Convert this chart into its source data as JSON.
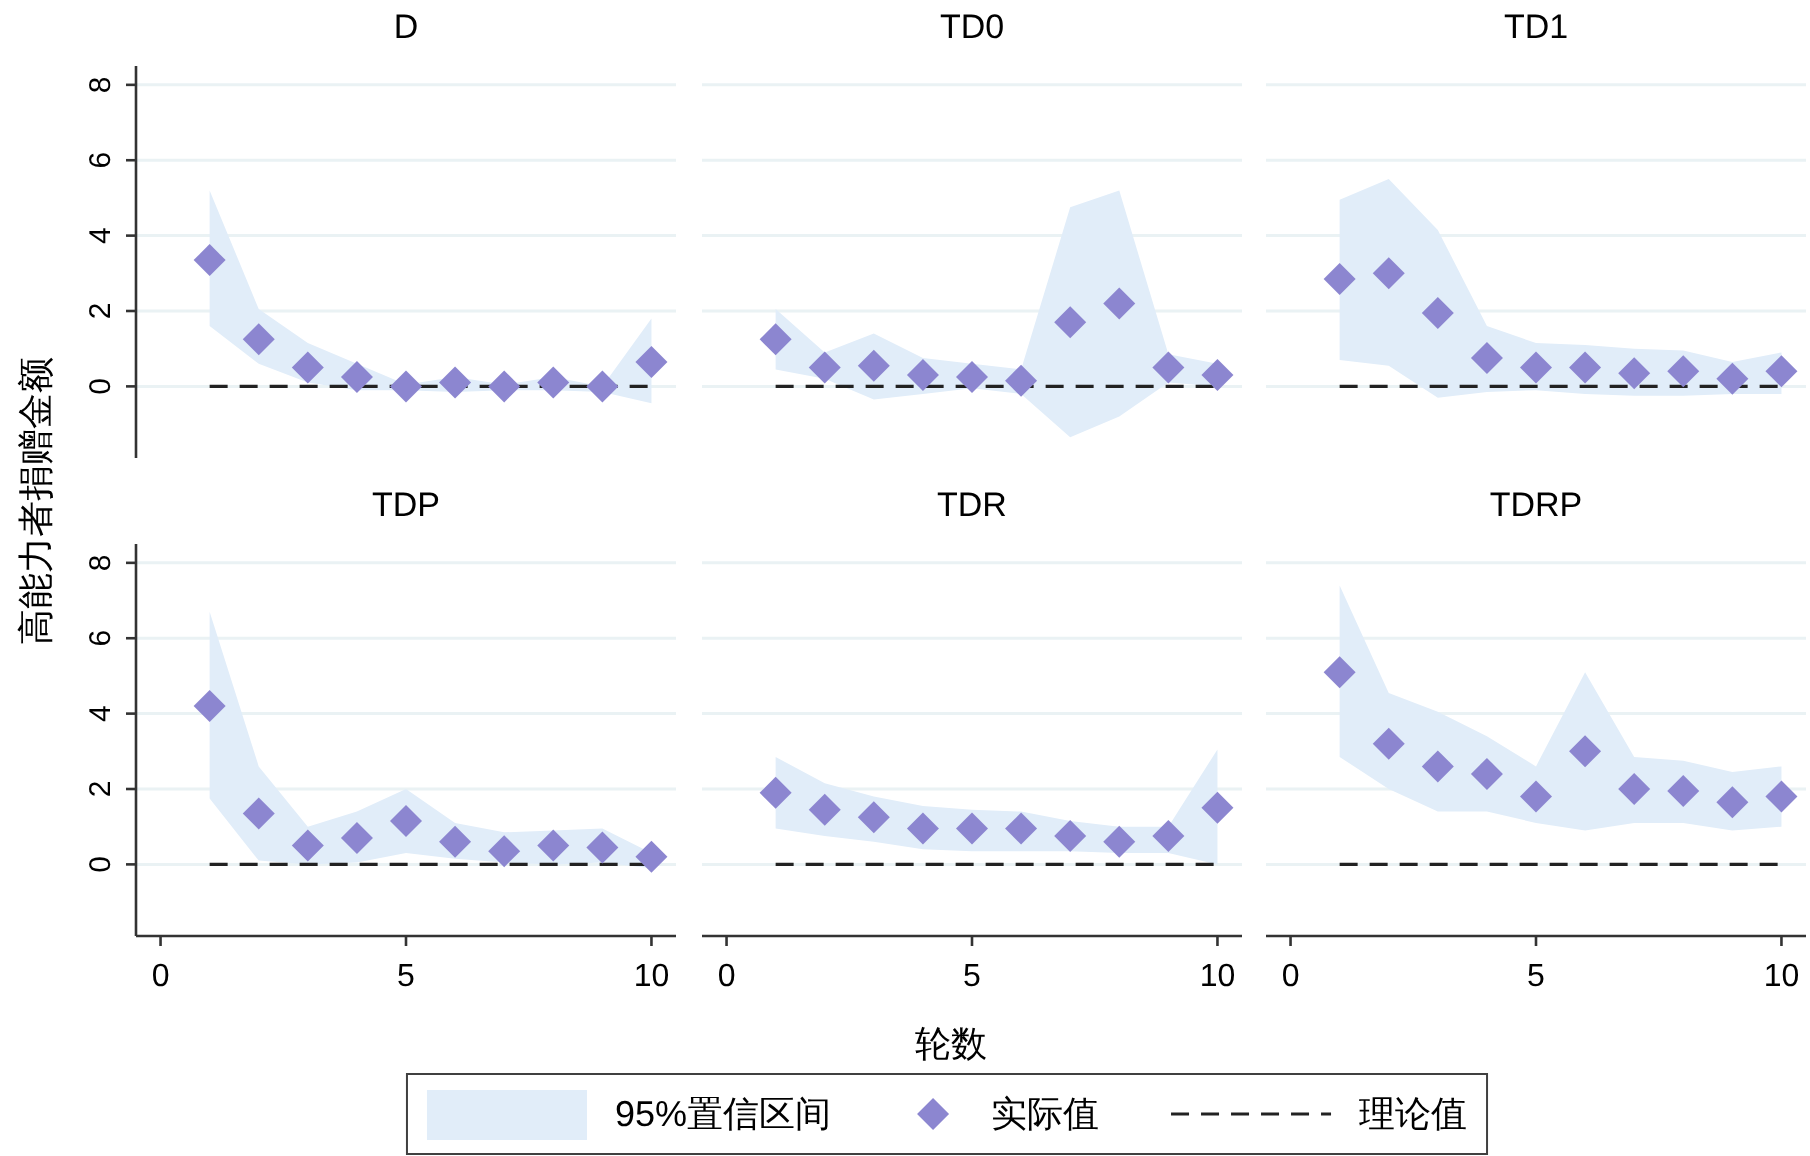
{
  "chart_data": [
    {
      "type": "scatter",
      "title": "D",
      "ylabel": "高能力者捐赠金额",
      "x": [
        1,
        2,
        3,
        4,
        5,
        6,
        7,
        8,
        9,
        10
      ],
      "xlim": [
        -0.5,
        10.5
      ],
      "ylim": [
        -1.9,
        8.5
      ],
      "yticks": [
        0,
        2,
        4,
        6,
        8
      ],
      "grid": "y",
      "tick_labels": "y",
      "series": [
        {
          "color": "#8c86d0",
          "marker": "diamond",
          "values": [
            3.35,
            1.25,
            0.5,
            0.25,
            0,
            0.1,
            0,
            0.1,
            0,
            0.65
          ],
          "lower": [
            1.6,
            0.6,
            0.1,
            -0.1,
            -0.1,
            -0.15,
            -0.1,
            -0.1,
            -0.15,
            -0.45
          ],
          "upper": [
            5.2,
            2.05,
            1.15,
            0.6,
            0.05,
            0.25,
            0.05,
            0.25,
            0,
            1.8
          ]
        },
        {
          "type": "line",
          "color": "#222222",
          "line_style": "dashed",
          "values": [
            0,
            0,
            0,
            0,
            0,
            0,
            0,
            0,
            0,
            0
          ]
        }
      ]
    },
    {
      "type": "scatter",
      "title": "TD0",
      "x": [
        1,
        2,
        3,
        4,
        5,
        6,
        7,
        8,
        9,
        10
      ],
      "xlim": [
        -0.5,
        10.5
      ],
      "yticks": [
        0,
        2,
        4,
        6,
        8
      ],
      "grid": "y",
      "tick_labels": false,
      "series": [
        {
          "color": "#8c86d0",
          "marker": "diamond",
          "values": [
            1.25,
            0.5,
            0.55,
            0.3,
            0.25,
            0.15,
            1.7,
            2.2,
            0.5,
            0.3
          ],
          "lower": [
            0.45,
            0.2,
            -0.35,
            -0.2,
            -0.05,
            -0.2,
            -1.35,
            -0.8,
            0.1,
            0
          ],
          "upper": [
            2.05,
            0.9,
            1.4,
            0.75,
            0.6,
            0.45,
            4.75,
            5.2,
            0.85,
            0.6
          ]
        },
        {
          "type": "line",
          "color": "#222222",
          "line_style": "dashed",
          "values": [
            0,
            0,
            0,
            0,
            0,
            0,
            0,
            0,
            0,
            0
          ]
        }
      ]
    },
    {
      "type": "scatter",
      "title": "TD1",
      "x": [
        1,
        2,
        3,
        4,
        5,
        6,
        7,
        8,
        9,
        10
      ],
      "xlim": [
        -0.5,
        10.5
      ],
      "yticks": [
        0,
        2,
        4,
        6,
        8
      ],
      "grid": "y",
      "tick_labels": false,
      "series": [
        {
          "color": "#8c86d0",
          "marker": "diamond",
          "values": [
            2.85,
            3.0,
            1.95,
            0.75,
            0.5,
            0.5,
            0.35,
            0.4,
            0.2,
            0.4
          ],
          "lower": [
            0.7,
            0.55,
            -0.3,
            -0.15,
            -0.1,
            -0.2,
            -0.25,
            -0.25,
            -0.2,
            -0.2
          ],
          "upper": [
            4.95,
            5.5,
            4.15,
            1.6,
            1.15,
            1.1,
            1.0,
            0.95,
            0.65,
            0.9
          ]
        },
        {
          "type": "line",
          "color": "#222222",
          "line_style": "dashed",
          "values": [
            0,
            0,
            0,
            0,
            0,
            0,
            0,
            0,
            0,
            0
          ]
        }
      ]
    },
    {
      "type": "scatter",
      "title": "TDP",
      "x": [
        1,
        2,
        3,
        4,
        5,
        6,
        7,
        8,
        9,
        10
      ],
      "xlim": [
        -0.5,
        10.5
      ],
      "xticks": [
        0,
        5,
        10
      ],
      "ylim": [
        -1.9,
        8.5
      ],
      "yticks": [
        0,
        2,
        4,
        6,
        8
      ],
      "grid": "y",
      "series": [
        {
          "color": "#8c86d0",
          "marker": "diamond",
          "values": [
            4.2,
            1.35,
            0.5,
            0.7,
            1.15,
            0.6,
            0.35,
            0.5,
            0.45,
            0.2
          ],
          "lower": [
            1.75,
            0.1,
            0,
            0.05,
            0.3,
            0.15,
            0.05,
            0,
            0.05,
            -0.1
          ],
          "upper": [
            6.7,
            2.6,
            1.0,
            1.4,
            2.0,
            1.1,
            0.85,
            0.9,
            0.95,
            0.3
          ]
        },
        {
          "type": "line",
          "color": "#222222",
          "line_style": "dashed",
          "values": [
            0,
            0,
            0,
            0,
            0,
            0,
            0,
            0,
            0,
            0
          ]
        }
      ]
    },
    {
      "type": "scatter",
      "title": "TDR",
      "xlabel": "轮数",
      "legend": "bottom",
      "annotations": [
        "95%置信区间"
      ],
      "x": [
        1,
        2,
        3,
        4,
        5,
        6,
        7,
        8,
        9,
        10
      ],
      "xlim": [
        -0.5,
        10.5
      ],
      "xticks": [
        0,
        5,
        10
      ],
      "yticks": [
        0,
        2,
        4,
        6,
        8
      ],
      "grid": "y",
      "tick_labels": "x",
      "series": [
        {
          "name": "实际值",
          "color": "#8c86d0",
          "marker": "diamond",
          "values": [
            1.9,
            1.45,
            1.25,
            0.95,
            0.95,
            0.95,
            0.75,
            0.6,
            0.75,
            1.5
          ],
          "lower": [
            0.95,
            0.75,
            0.6,
            0.4,
            0.35,
            0.35,
            0.35,
            0.3,
            0.3,
            0
          ],
          "upper": [
            2.85,
            2.15,
            1.8,
            1.55,
            1.45,
            1.4,
            1.15,
            1.0,
            1.0,
            3.05
          ]
        },
        {
          "name": "理论值",
          "type": "line",
          "color": "#222222",
          "line_style": "dashed",
          "values": [
            0,
            0,
            0,
            0,
            0,
            0,
            0,
            0,
            0,
            0
          ]
        }
      ]
    },
    {
      "type": "scatter",
      "title": "TDRP",
      "x": [
        1,
        2,
        3,
        4,
        5,
        6,
        7,
        8,
        9,
        10
      ],
      "xlim": [
        -0.5,
        10.5
      ],
      "xticks": [
        0,
        5,
        10
      ],
      "yticks": [
        0,
        2,
        4,
        6,
        8
      ],
      "grid": "y",
      "tick_labels": "x",
      "series": [
        {
          "color": "#8c86d0",
          "marker": "diamond",
          "values": [
            5.1,
            3.2,
            2.6,
            2.4,
            1.8,
            3.0,
            2.0,
            1.95,
            1.65,
            1.8
          ],
          "lower": [
            2.85,
            2.0,
            1.4,
            1.4,
            1.1,
            0.9,
            1.1,
            1.1,
            0.9,
            1.0
          ],
          "upper": [
            7.4,
            4.55,
            4.05,
            3.4,
            2.6,
            5.1,
            2.85,
            2.75,
            2.45,
            2.6
          ]
        },
        {
          "type": "line",
          "color": "#222222",
          "line_style": "dashed",
          "values": [
            0,
            0,
            0,
            0,
            0,
            0,
            0,
            0,
            0,
            0
          ]
        }
      ]
    }
  ]
}
